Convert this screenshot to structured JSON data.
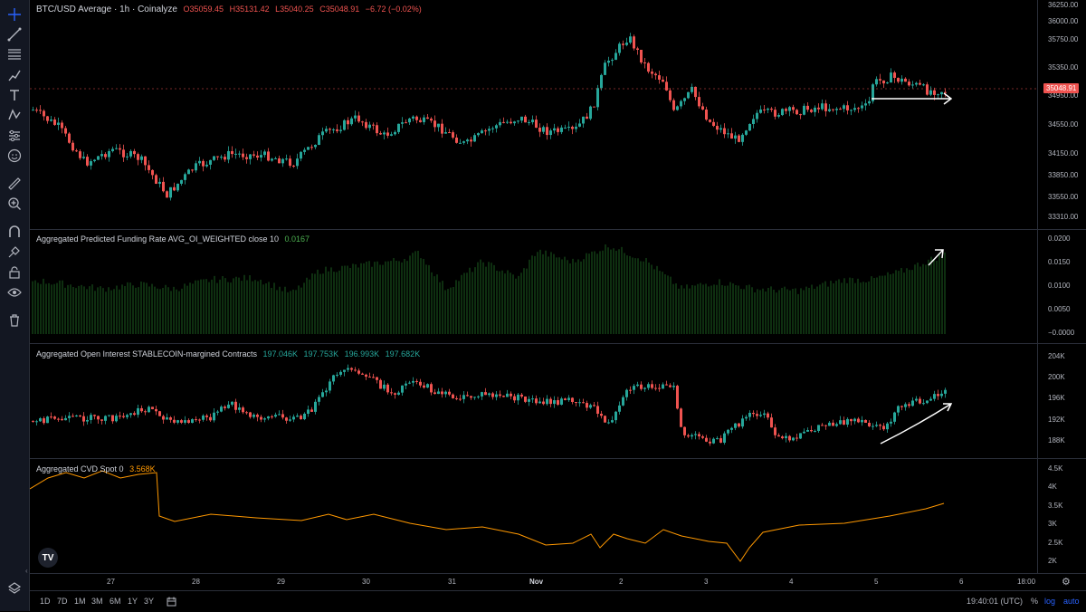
{
  "main_legend": {
    "symbol": "BTC/USD Average · 1h · Coinalyze",
    "open": "O35059.45",
    "high": "H35131.42",
    "low": "L35040.25",
    "close": "C35048.91",
    "change": "−6.72 (−0.02%)"
  },
  "funding_legend": {
    "title": "Aggregated Predicted Funding Rate AVG_OI_WEIGHTED close 10",
    "value": "0.0167"
  },
  "oi_legend": {
    "title": "Aggregated Open Interest STABLECOIN-margined Contracts",
    "o": "197.046K",
    "h": "197.753K",
    "l": "196.993K",
    "c": "197.682K"
  },
  "cvd_legend": {
    "title": "Aggregated CVD Spot 0",
    "value": "3.568K"
  },
  "price_axis": [
    "36250.00",
    "36000.00",
    "35750.00",
    "35350.00",
    "34950.00",
    "34550.00",
    "34150.00",
    "33850.00",
    "33550.00",
    "33310.00"
  ],
  "last_price": "35048.91",
  "funding_axis": [
    "0.0200",
    "0.0150",
    "0.0100",
    "0.0050",
    "−0.0000"
  ],
  "oi_axis": [
    "204K",
    "200K",
    "196K",
    "192K",
    "188K"
  ],
  "cvd_axis": [
    "4.5K",
    "4K",
    "3.5K",
    "3K",
    "2.5K",
    "2K"
  ],
  "time_axis": [
    "27",
    "28",
    "29",
    "30",
    "31",
    "Nov",
    "2",
    "3",
    "4",
    "5",
    "6",
    "18:00"
  ],
  "ranges": [
    "1D",
    "7D",
    "1M",
    "3M",
    "6M",
    "1Y",
    "3Y"
  ],
  "clock": "19:40:01 (UTC)",
  "percent_toggle": "%",
  "log_toggle": "log",
  "auto_toggle": "auto",
  "logo_text": "TV",
  "colors": {
    "up": "#26a69a",
    "down": "#ef5350",
    "funding": "#1b5e20",
    "cvd": "#ff9800",
    "annotation": "#ffffff"
  },
  "toolbar_icons": [
    "crosshair-icon",
    "trend-line-icon",
    "fib-icon",
    "brush-icon",
    "text-icon",
    "pattern-icon",
    "measure-settings-icon",
    "emoji-icon",
    "ruler-icon",
    "zoom-in-icon",
    "magnet-icon",
    "lock-drawing-icon",
    "lock-icon",
    "eye-icon",
    "trash-icon",
    "layers-icon"
  ]
}
